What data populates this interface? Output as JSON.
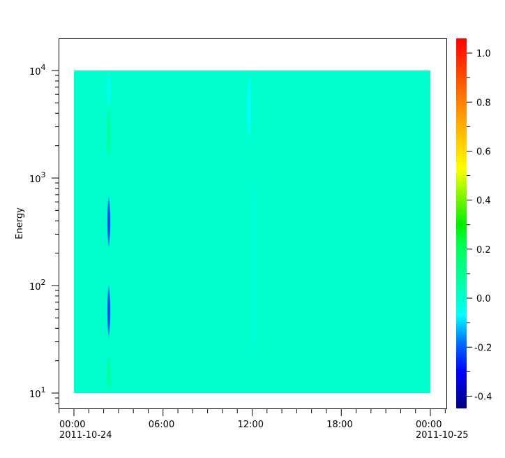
{
  "chart_data": {
    "type": "heatmap",
    "title": "",
    "xlabel": "",
    "ylabel": "Energy",
    "x_range": [
      "2011-10-24T00:00",
      "2011-10-25T00:00"
    ],
    "x_ticks": [
      {
        "hour": 0,
        "label": "00:00",
        "sublabel": "2011-10-24"
      },
      {
        "hour": 6,
        "label": "06:00",
        "sublabel": ""
      },
      {
        "hour": 12,
        "label": "12:00",
        "sublabel": ""
      },
      {
        "hour": 18,
        "label": "18:00",
        "sublabel": ""
      },
      {
        "hour": 24,
        "label": "00:00",
        "sublabel": "2011-10-25"
      }
    ],
    "y_scale": "log",
    "y_range": [
      10,
      10000
    ],
    "y_ticks": [
      {
        "value": 10,
        "base": "10",
        "exp": "1"
      },
      {
        "value": 100,
        "base": "10",
        "exp": "2"
      },
      {
        "value": 1000,
        "base": "10",
        "exp": "3"
      },
      {
        "value": 10000,
        "base": "10",
        "exp": "4"
      }
    ],
    "colorbar": {
      "range": [
        -0.45,
        1.06
      ],
      "ticks": [
        "-0.4",
        "-0.2",
        "0.0",
        "0.2",
        "0.4",
        "0.6",
        "0.8",
        "1.0"
      ],
      "colormap": "jet",
      "colors": [
        {
          "value": -0.45,
          "color": "#00007a"
        },
        {
          "value": -0.3,
          "color": "#0000ff"
        },
        {
          "value": -0.18,
          "color": "#0070ff"
        },
        {
          "value": -0.07,
          "color": "#00ffff"
        },
        {
          "value": 0.0,
          "color": "#00ffcc"
        },
        {
          "value": 0.22,
          "color": "#00ff50"
        },
        {
          "value": 0.3,
          "color": "#00ee00"
        },
        {
          "value": 0.53,
          "color": "#ffff00"
        },
        {
          "value": 0.8,
          "color": "#ff8000"
        },
        {
          "value": 1.06,
          "color": "#ff0000"
        }
      ]
    },
    "background_value": 0.0,
    "features": [
      {
        "hour": 2.35,
        "energy": [
          4500,
          10000
        ],
        "value": -0.05
      },
      {
        "hour": 2.35,
        "energy": [
          1400,
          4800
        ],
        "value": 0.12
      },
      {
        "hour": 2.35,
        "energy": [
          220,
          700
        ],
        "value": -0.25
      },
      {
        "hour": 2.35,
        "energy": [
          32,
          106
        ],
        "value": -0.25
      },
      {
        "hour": 2.35,
        "energy": [
          10,
          24
        ],
        "value": 0.12
      },
      {
        "hour": 11.8,
        "energy": [
          2000,
          10000
        ],
        "value": -0.06
      },
      {
        "hour": 12.1,
        "energy": [
          10,
          2000
        ],
        "value": -0.02
      }
    ]
  }
}
